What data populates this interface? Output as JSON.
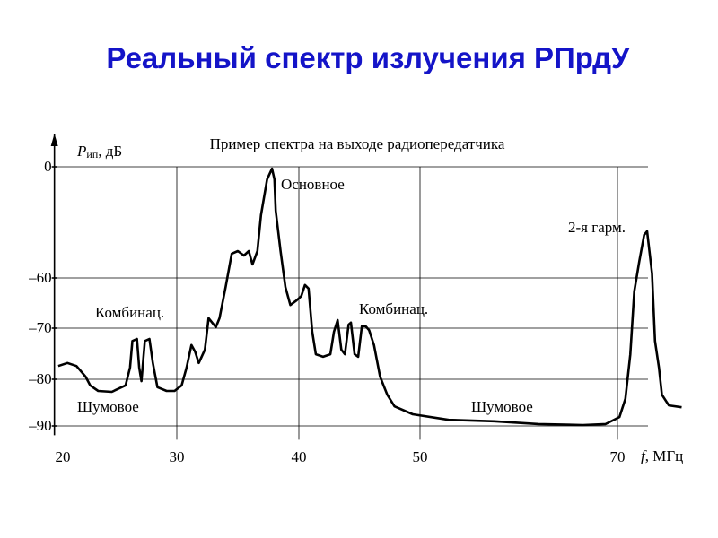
{
  "chart_data": {
    "type": "line",
    "title": "Реальный спектр излучения РПрдУ",
    "subtitle": "Пример спектра на выходе радиопередатчика",
    "ylabel": [
      "P",
      "ип",
      ", дБ"
    ],
    "xlabel": [
      "f",
      ", МГц"
    ],
    "annotations": [
      "Основное",
      "2-я гарм.",
      "Комбинац.",
      "Комбинац.",
      "Шумовое",
      "Шумовое"
    ],
    "xlim": [
      19.5,
      77
    ],
    "ylim": [
      -92,
      15
    ],
    "xticks": [
      20,
      30,
      40,
      50,
      70
    ],
    "yticks": [
      0,
      {
        "value": -60,
        "label": "–60"
      },
      {
        "value": -70,
        "label": "–70"
      },
      {
        "value": -80,
        "label": "–80"
      },
      {
        "value": -90,
        "label": "–90"
      }
    ],
    "grid": true,
    "color": "#000000",
    "x": [
      19.6,
      20.4,
      21.2,
      22.0,
      22.4,
      23.1,
      24.3,
      25.5,
      25.9,
      26.1,
      26.5,
      26.7,
      26.9,
      27.2,
      27.6,
      27.9,
      28.3,
      29.1,
      29.8,
      30.4,
      30.8,
      31.2,
      31.5,
      31.8,
      32.3,
      32.6,
      32.9,
      33.2,
      33.5,
      34.0,
      34.5,
      35.0,
      35.5,
      35.9,
      36.2,
      36.6,
      36.9,
      37.4,
      37.8,
      38.0,
      38.1,
      38.5,
      38.9,
      39.3,
      39.8,
      40.2,
      40.5,
      40.8,
      41.1,
      41.4,
      42.0,
      42.6,
      42.9,
      43.2,
      43.5,
      43.8,
      44.1,
      44.3,
      44.6,
      44.9,
      45.2,
      45.5,
      45.8,
      46.2,
      46.7,
      47.3,
      47.9,
      49.4,
      52.9,
      57.5,
      62.0,
      66.5,
      68.8,
      70.2,
      70.8,
      71.3,
      71.7,
      72.2,
      72.7,
      73.0,
      73.5,
      73.8,
      74.2,
      74.5,
      75.2,
      76.5
    ],
    "values": [
      -77.4,
      -76.8,
      -77.4,
      -79.5,
      -81.3,
      -82.5,
      -82.7,
      -81.3,
      -77.7,
      -72.5,
      -72.1,
      -77.7,
      -80.4,
      -72.5,
      -72.1,
      -76.8,
      -81.7,
      -82.5,
      -82.5,
      -81.3,
      -77.7,
      -73.3,
      -74.6,
      -76.8,
      -74.2,
      -68.0,
      -68.9,
      -69.8,
      -68.0,
      -61.8,
      -46.9,
      -45.5,
      -47.9,
      -45.5,
      -52.7,
      -45.5,
      -26.1,
      -6.8,
      -1.0,
      -6.8,
      -23.7,
      -45.5,
      -61.8,
      -65.4,
      -64.5,
      -63.6,
      -61.4,
      -62.1,
      -70.7,
      -75.1,
      -75.6,
      -75.1,
      -70.7,
      -68.4,
      -74.2,
      -75.1,
      -69.3,
      -68.9,
      -75.1,
      -75.6,
      -69.6,
      -69.6,
      -70.4,
      -73.3,
      -79.5,
      -83.3,
      -85.8,
      -87.5,
      -88.7,
      -89.0,
      -89.6,
      -89.8,
      -89.6,
      -88.1,
      -84.2,
      -75.1,
      -62.7,
      -51.3,
      -36.8,
      -34.8,
      -57.6,
      -72.5,
      -77.7,
      -83.3,
      -85.6,
      -86.0
    ]
  }
}
